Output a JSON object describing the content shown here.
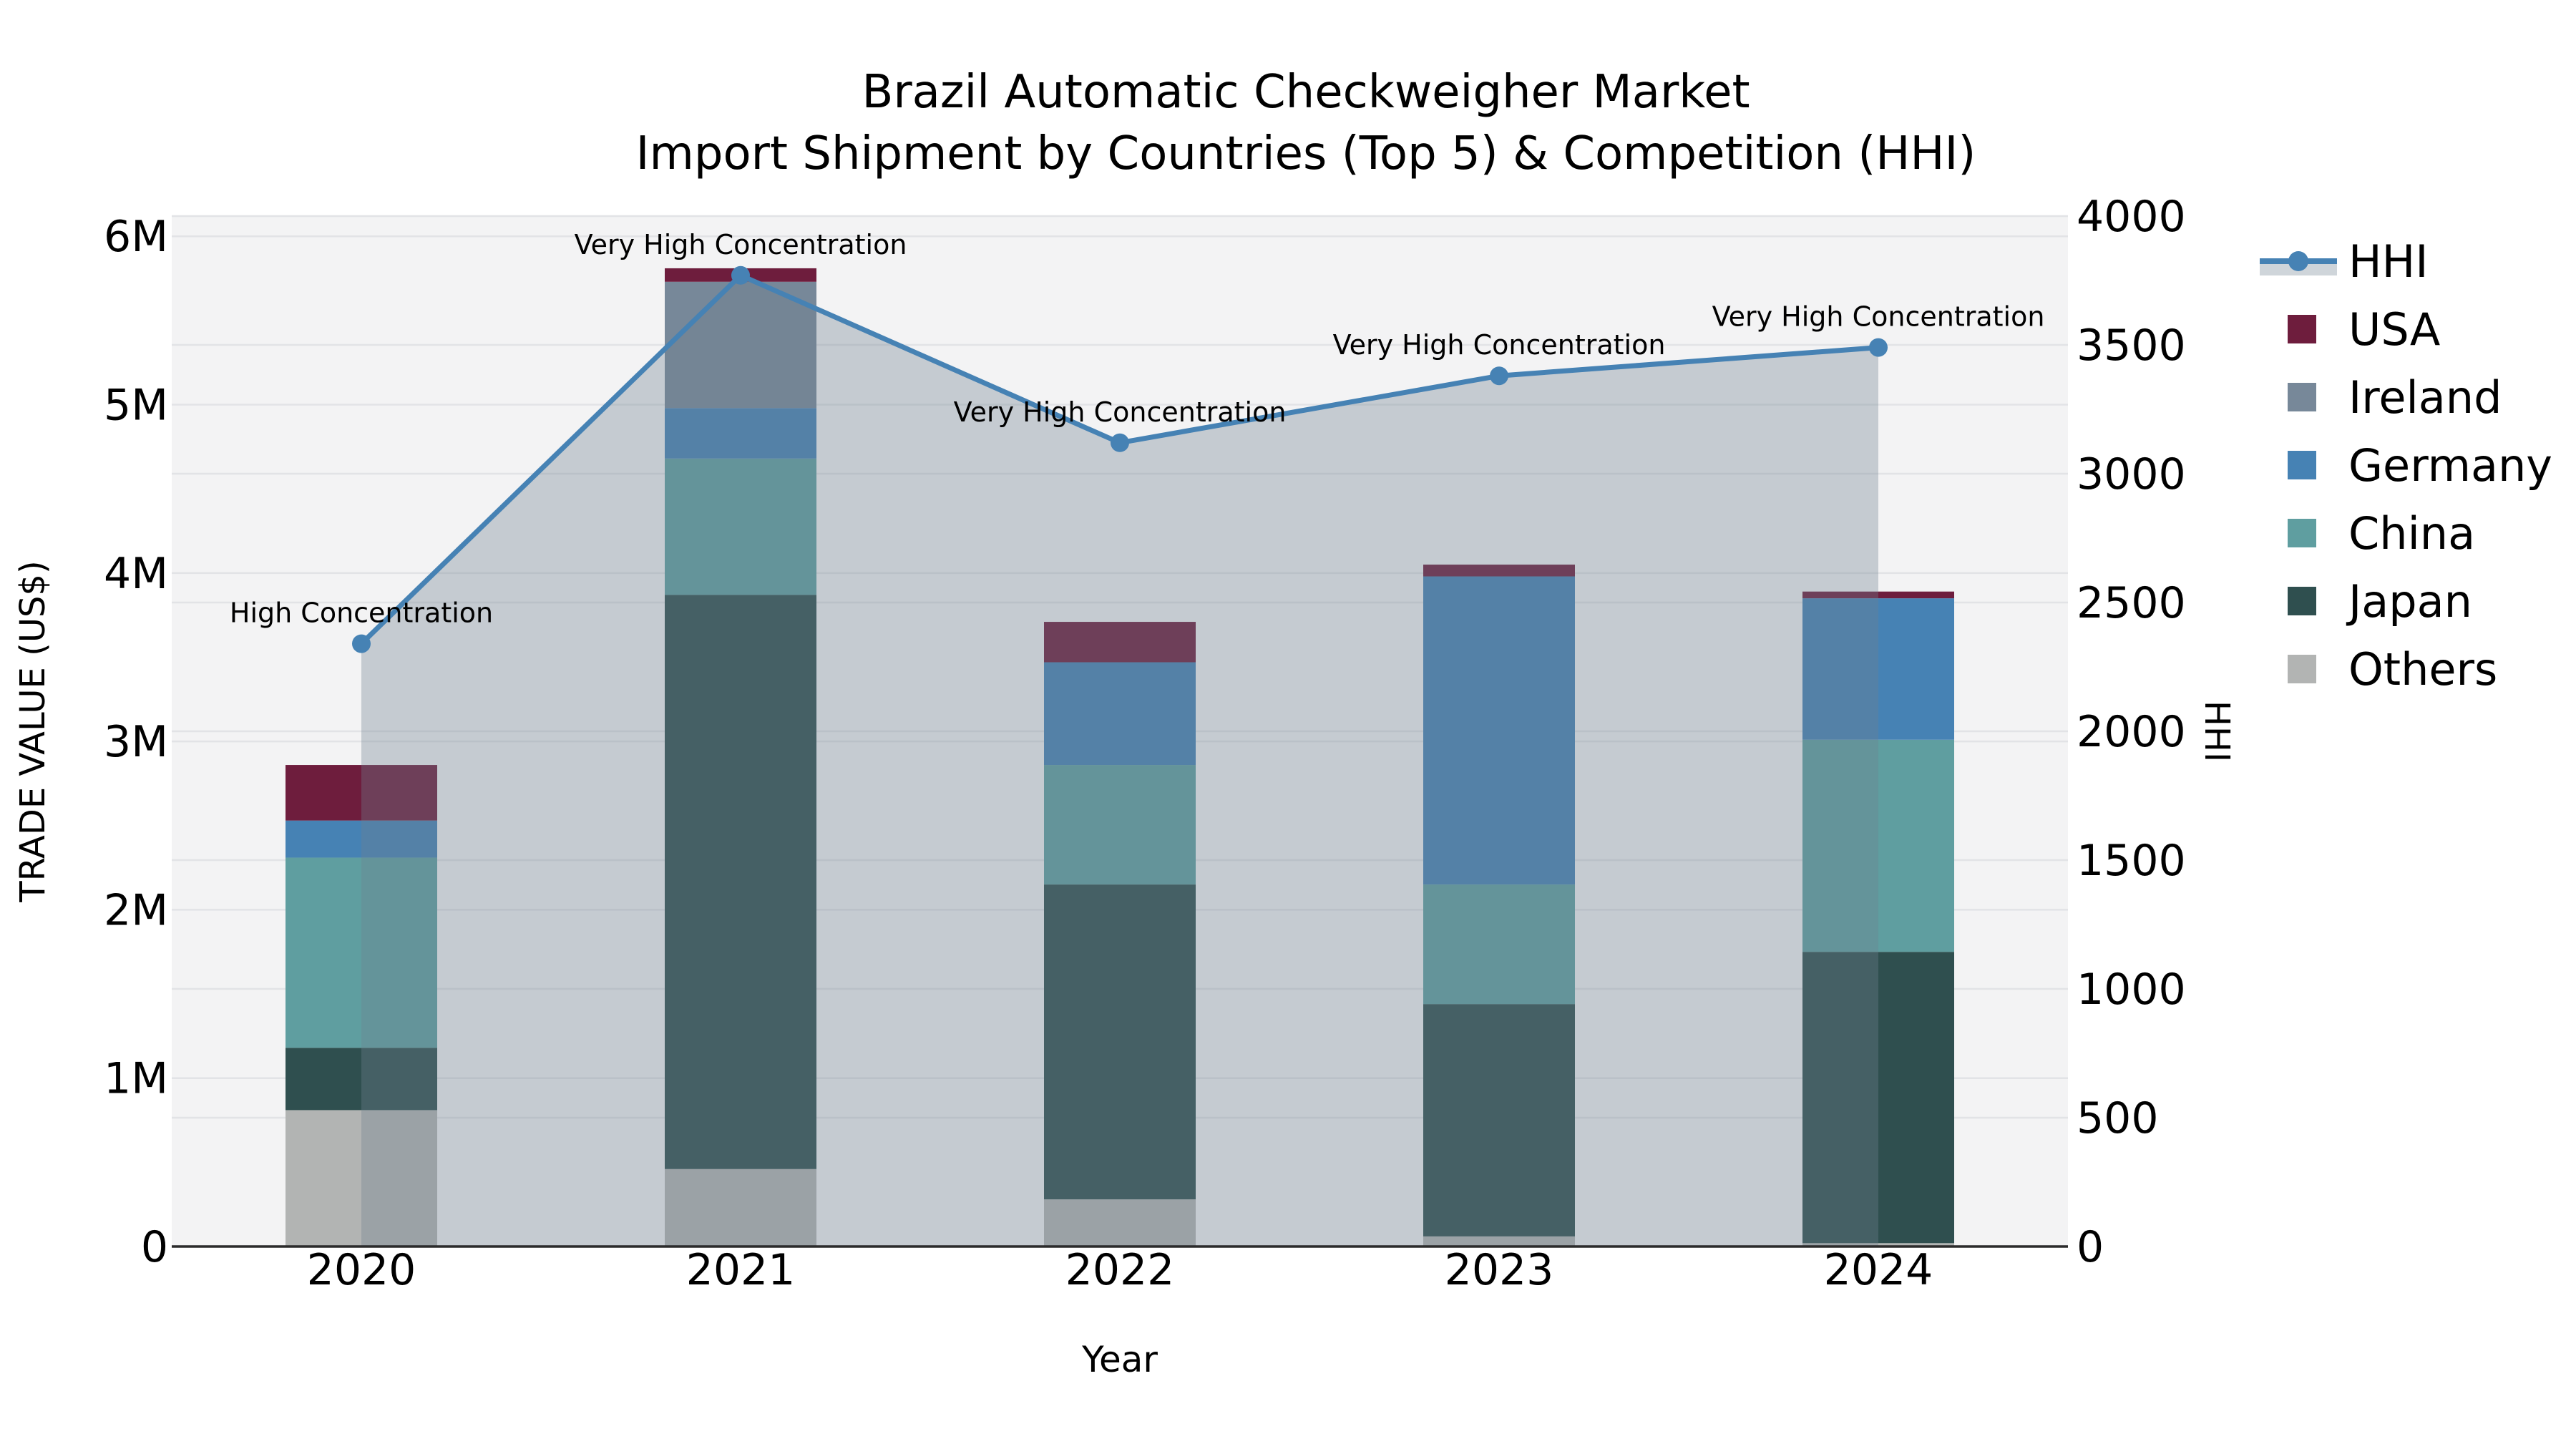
{
  "title": {
    "line1": "Brazil Automatic Checkweigher Market",
    "line2": "Import Shipment by Countries (Top 5) & Competition (HHI)"
  },
  "chart_data": {
    "type": "stacked-bar+line",
    "categories": [
      "2020",
      "2021",
      "2022",
      "2023",
      "2024"
    ],
    "value_unit": "millions US$",
    "series": [
      {
        "name": "Others",
        "color": "#b2b4b3",
        "values": [
          0.81,
          0.46,
          0.28,
          0.06,
          0.02
        ]
      },
      {
        "name": "Japan",
        "color": "#2f4f4f",
        "values": [
          0.37,
          3.41,
          1.87,
          1.38,
          1.73
        ]
      },
      {
        "name": "China",
        "color": "#5f9ea0",
        "values": [
          1.13,
          0.81,
          0.71,
          0.71,
          1.26
        ]
      },
      {
        "name": "Germany",
        "color": "#4682b4",
        "values": [
          0.22,
          0.3,
          0.61,
          1.83,
          0.84
        ]
      },
      {
        "name": "Ireland",
        "color": "#778899",
        "values": [
          0.0,
          0.75,
          0.0,
          0.0,
          0.0
        ]
      },
      {
        "name": "USA",
        "color": "#6e1d3d",
        "values": [
          0.33,
          0.08,
          0.24,
          0.07,
          0.04
        ]
      }
    ],
    "bar_totals": [
      2.86,
      5.81,
      3.71,
      4.05,
      3.89
    ],
    "line_series": {
      "name": "HHI",
      "color": "#4682b4",
      "area_fill": "rgba(112,128,144,0.35)",
      "values": [
        2340,
        3770,
        3120,
        3380,
        3490
      ]
    },
    "annotations": [
      "High Concentration",
      "Very High Concentration",
      "Very High Concentration",
      "Very High Concentration",
      "Very High Concentration"
    ],
    "axes": {
      "x": {
        "label": "Year"
      },
      "left": {
        "label": "TRADE VALUE (US$)",
        "ticks": [
          "0",
          "1M",
          "2M",
          "3M",
          "4M",
          "5M",
          "6M"
        ],
        "tick_values": [
          0,
          1,
          2,
          3,
          4,
          5,
          6
        ],
        "max": 6.12
      },
      "right": {
        "label": "HHI",
        "ticks": [
          "0",
          "500",
          "1000",
          "1500",
          "2000",
          "2500",
          "3000",
          "3500",
          "4000"
        ],
        "tick_values": [
          0,
          500,
          1000,
          1500,
          2000,
          2500,
          3000,
          3500,
          4000
        ],
        "max": 4000
      }
    },
    "legend": {
      "entries": [
        {
          "label": "HHI",
          "type": "line"
        },
        {
          "label": "USA",
          "type": "swatch",
          "color": "#6e1d3d"
        },
        {
          "label": "Ireland",
          "type": "swatch",
          "color": "#778899"
        },
        {
          "label": "Germany",
          "type": "swatch",
          "color": "#4682b4"
        },
        {
          "label": "China",
          "type": "swatch",
          "color": "#5f9ea0"
        },
        {
          "label": "Japan",
          "type": "swatch",
          "color": "#2f4f4f"
        },
        {
          "label": "Others",
          "type": "swatch",
          "color": "#b2b4b3"
        }
      ]
    },
    "style": {
      "plot_bg": "#f3f3f4",
      "grid_color": "#e2e3e6",
      "spine_color": "#2b2b2b",
      "legend_band_color": "#cfd5da"
    }
  }
}
